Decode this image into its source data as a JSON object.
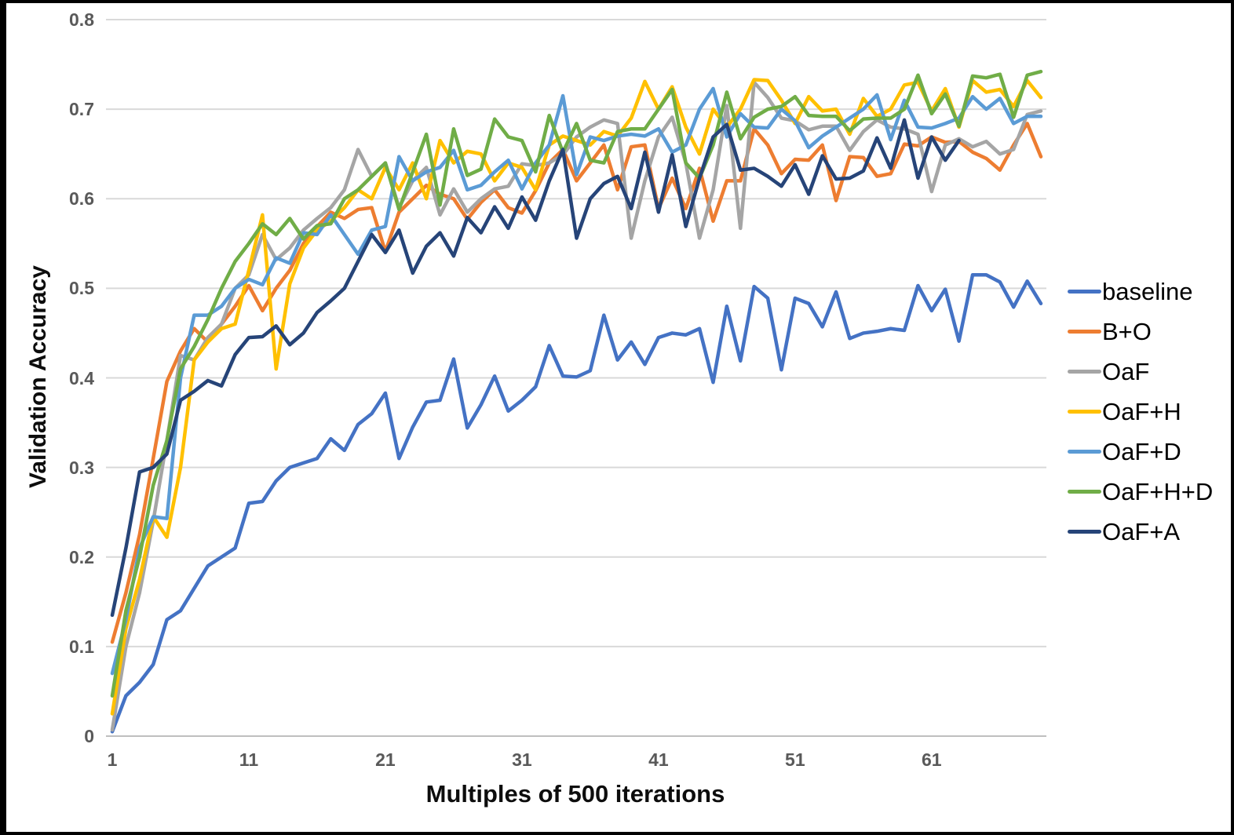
{
  "chart": {
    "y_axis_title": "Validation Accuracy",
    "x_axis_title": "Multiples of 500 iterations"
  },
  "chart_data": {
    "type": "line",
    "title": "",
    "xlabel": "Multiples of 500 iterations",
    "ylabel": "Validation Accuracy",
    "xlim": [
      1,
      69
    ],
    "ylim": [
      0,
      0.8
    ],
    "x_ticks": [
      1,
      11,
      21,
      31,
      41,
      51,
      61
    ],
    "y_ticks": [
      0,
      0.1,
      0.2,
      0.3,
      0.4,
      0.5,
      0.6,
      0.7,
      0.8
    ],
    "grid": true,
    "legend_position": "right",
    "x_start": 1,
    "x_step": 1,
    "gridline_color": "#d9d9d9",
    "axisline_color": "#bfbfbf",
    "series": [
      {
        "name": "baseline",
        "color": "#4472C4",
        "values": [
          0.005,
          0.045,
          0.06,
          0.08,
          0.13,
          0.14,
          0.165,
          0.19,
          0.2,
          0.21,
          0.26,
          0.262,
          0.285,
          0.3,
          0.305,
          0.31,
          0.332,
          0.319,
          0.348,
          0.36,
          0.383,
          0.31,
          0.345,
          0.373,
          0.375,
          0.421,
          0.344,
          0.37,
          0.402,
          0.363,
          0.375,
          0.39,
          0.436,
          0.402,
          0.401,
          0.408,
          0.47,
          0.42,
          0.44,
          0.415,
          0.445,
          0.45,
          0.448,
          0.455,
          0.395,
          0.48,
          0.419,
          0.502,
          0.489,
          0.409,
          0.489,
          0.483,
          0.457,
          0.496,
          0.444,
          0.45,
          0.452,
          0.455,
          0.453,
          0.503,
          0.475,
          0.499,
          0.441,
          0.515,
          0.515,
          0.507,
          0.479,
          0.508,
          0.483
        ]
      },
      {
        "name": "B+O",
        "color": "#ED7D31",
        "values": [
          0.105,
          0.16,
          0.225,
          0.31,
          0.396,
          0.43,
          0.455,
          0.44,
          0.46,
          0.48,
          0.503,
          0.475,
          0.5,
          0.52,
          0.55,
          0.569,
          0.585,
          0.578,
          0.588,
          0.59,
          0.541,
          0.585,
          0.6,
          0.615,
          0.605,
          0.6,
          0.577,
          0.596,
          0.61,
          0.59,
          0.584,
          0.609,
          0.64,
          0.655,
          0.62,
          0.64,
          0.66,
          0.61,
          0.658,
          0.66,
          0.589,
          0.623,
          0.589,
          0.634,
          0.575,
          0.62,
          0.62,
          0.678,
          0.66,
          0.628,
          0.644,
          0.643,
          0.66,
          0.598,
          0.647,
          0.646,
          0.625,
          0.628,
          0.661,
          0.659,
          0.669,
          0.663,
          0.664,
          0.652,
          0.645,
          0.632,
          0.66,
          0.684,
          0.647
        ]
      },
      {
        "name": "OaF",
        "color": "#A5A5A5",
        "values": [
          0.007,
          0.1,
          0.16,
          0.24,
          0.33,
          0.425,
          0.42,
          0.445,
          0.46,
          0.5,
          0.515,
          0.56,
          0.532,
          0.545,
          0.565,
          0.578,
          0.59,
          0.61,
          0.655,
          0.625,
          0.64,
          0.59,
          0.62,
          0.635,
          0.582,
          0.611,
          0.585,
          0.6,
          0.611,
          0.614,
          0.639,
          0.637,
          0.64,
          0.649,
          0.669,
          0.68,
          0.688,
          0.684,
          0.556,
          0.62,
          0.669,
          0.691,
          0.64,
          0.556,
          0.61,
          0.704,
          0.567,
          0.73,
          0.713,
          0.69,
          0.687,
          0.677,
          0.681,
          0.681,
          0.654,
          0.675,
          0.688,
          0.68,
          0.678,
          0.672,
          0.608,
          0.66,
          0.667,
          0.658,
          0.664,
          0.65,
          0.655,
          0.694,
          0.698
        ]
      },
      {
        "name": "OaF+H",
        "color": "#FFC000",
        "values": [
          0.025,
          0.12,
          0.175,
          0.245,
          0.222,
          0.3,
          0.42,
          0.44,
          0.455,
          0.46,
          0.52,
          0.582,
          0.41,
          0.505,
          0.545,
          0.565,
          0.575,
          0.59,
          0.61,
          0.6,
          0.635,
          0.61,
          0.64,
          0.6,
          0.665,
          0.64,
          0.653,
          0.65,
          0.62,
          0.64,
          0.635,
          0.61,
          0.66,
          0.67,
          0.665,
          0.66,
          0.675,
          0.67,
          0.69,
          0.731,
          0.7,
          0.725,
          0.68,
          0.65,
          0.7,
          0.68,
          0.7,
          0.733,
          0.732,
          0.71,
          0.684,
          0.714,
          0.698,
          0.7,
          0.672,
          0.712,
          0.692,
          0.7,
          0.727,
          0.73,
          0.698,
          0.723,
          0.68,
          0.732,
          0.719,
          0.722,
          0.703,
          0.732,
          0.713
        ]
      },
      {
        "name": "OaF+D",
        "color": "#5B9BD5",
        "values": [
          0.07,
          0.13,
          0.21,
          0.245,
          0.243,
          0.4,
          0.47,
          0.47,
          0.48,
          0.5,
          0.51,
          0.504,
          0.534,
          0.528,
          0.562,
          0.56,
          0.582,
          0.56,
          0.538,
          0.565,
          0.569,
          0.647,
          0.62,
          0.63,
          0.635,
          0.654,
          0.61,
          0.615,
          0.63,
          0.643,
          0.611,
          0.64,
          0.66,
          0.715,
          0.627,
          0.669,
          0.665,
          0.67,
          0.672,
          0.67,
          0.678,
          0.652,
          0.66,
          0.7,
          0.723,
          0.669,
          0.695,
          0.68,
          0.679,
          0.7,
          0.687,
          0.657,
          0.67,
          0.68,
          0.69,
          0.7,
          0.716,
          0.666,
          0.71,
          0.68,
          0.679,
          0.684,
          0.69,
          0.714,
          0.7,
          0.712,
          0.684,
          0.692,
          0.692
        ]
      },
      {
        "name": "OaF+H+D",
        "color": "#70AD47",
        "values": [
          0.045,
          0.14,
          0.2,
          0.28,
          0.33,
          0.41,
          0.435,
          0.465,
          0.5,
          0.53,
          0.55,
          0.572,
          0.56,
          0.578,
          0.555,
          0.57,
          0.572,
          0.6,
          0.61,
          0.625,
          0.64,
          0.588,
          0.63,
          0.672,
          0.593,
          0.678,
          0.626,
          0.633,
          0.689,
          0.669,
          0.665,
          0.63,
          0.693,
          0.652,
          0.684,
          0.643,
          0.64,
          0.675,
          0.678,
          0.678,
          0.7,
          0.722,
          0.64,
          0.623,
          0.66,
          0.719,
          0.667,
          0.691,
          0.7,
          0.703,
          0.714,
          0.693,
          0.692,
          0.692,
          0.676,
          0.689,
          0.69,
          0.69,
          0.7,
          0.738,
          0.695,
          0.717,
          0.681,
          0.737,
          0.735,
          0.739,
          0.691,
          0.738,
          0.742
        ]
      },
      {
        "name": "OaF+A",
        "color": "#264478",
        "values": [
          0.135,
          0.21,
          0.295,
          0.3,
          0.315,
          0.375,
          0.385,
          0.397,
          0.391,
          0.426,
          0.445,
          0.446,
          0.458,
          0.437,
          0.45,
          0.473,
          0.486,
          0.5,
          0.53,
          0.56,
          0.54,
          0.565,
          0.517,
          0.547,
          0.562,
          0.536,
          0.579,
          0.562,
          0.591,
          0.567,
          0.602,
          0.576,
          0.62,
          0.655,
          0.556,
          0.6,
          0.617,
          0.625,
          0.589,
          0.652,
          0.585,
          0.649,
          0.569,
          0.623,
          0.669,
          0.683,
          0.632,
          0.634,
          0.625,
          0.614,
          0.638,
          0.605,
          0.648,
          0.622,
          0.623,
          0.631,
          0.668,
          0.634,
          0.688,
          0.623,
          0.669,
          0.643,
          0.665
        ]
      }
    ]
  }
}
